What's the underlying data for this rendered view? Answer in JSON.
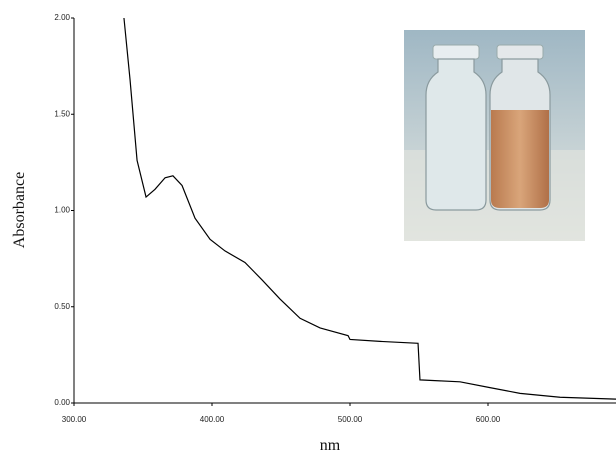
{
  "chart_data": {
    "type": "line",
    "x_label": "nm",
    "y_label": "Absorbance",
    "xlim": [
      300,
      692.75
    ],
    "ylim": [
      0,
      2
    ],
    "xticks": [
      {
        "value": 300,
        "label": "300.00"
      },
      {
        "value": 400,
        "label": "400.00"
      },
      {
        "value": 500,
        "label": "500.00"
      },
      {
        "value": 600,
        "label": "600.00"
      }
    ],
    "yticks": [
      {
        "value": 0,
        "label": "0.00"
      },
      {
        "value": 0.5,
        "label": "0.50"
      },
      {
        "value": 1,
        "label": "1.00"
      },
      {
        "value": 1.5,
        "label": "1.50"
      },
      {
        "value": 2,
        "label": "2.00"
      }
    ],
    "grid": false,
    "series": [
      {
        "color": "#000000",
        "x": [
          336.2,
          340.6,
          345.7,
          352.2,
          358.7,
          366,
          371.7,
          378.3,
          387.7,
          398.6,
          409.4,
          423.9,
          436.2,
          449.3,
          463.8,
          478.3,
          498.6,
          500,
          521.7,
          549.3,
          550.7,
          579.7,
          601.4,
          623.2,
          652.2,
          692.75
        ],
        "values": [
          2.0,
          1.68,
          1.26,
          1.07,
          1.11,
          1.17,
          1.18,
          1.13,
          0.96,
          0.85,
          0.79,
          0.73,
          0.64,
          0.54,
          0.44,
          0.39,
          0.35,
          0.33,
          0.32,
          0.31,
          0.12,
          0.11,
          0.08,
          0.05,
          0.03,
          0.02
        ]
      }
    ]
  }
}
